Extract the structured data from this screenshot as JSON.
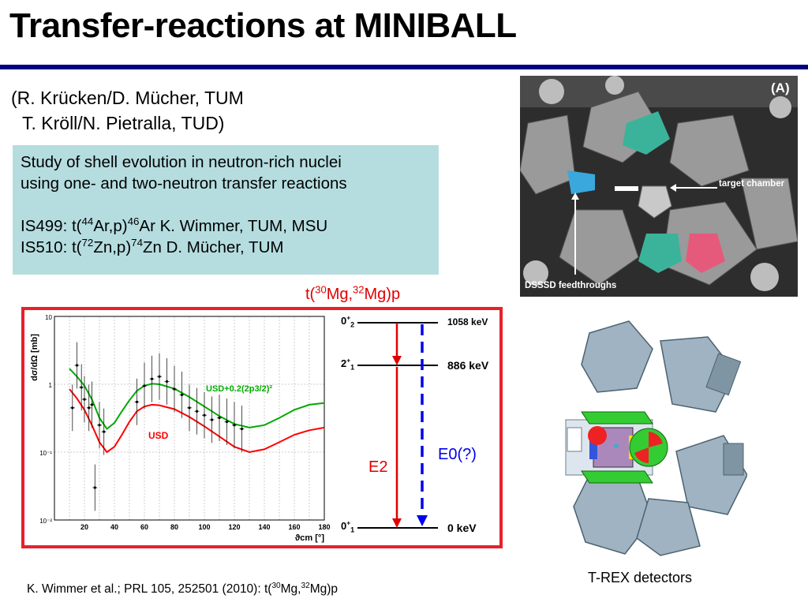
{
  "slide": {
    "title": "Transfer-reactions at MINIBALL",
    "authors_line1": "(R. Krücken/D. Mücher, TUM",
    "authors_line2": "T. Kröll/N. Pietralla, TUD)",
    "study": {
      "line1": "Study of shell evolution in neutron-rich nuclei",
      "line2": "using one- and two-neutron transfer reactions",
      "is499": {
        "pre": "IS499:  t(",
        "m1": "44",
        "mid": "Ar,p)",
        "m2": "46",
        "post": "Ar   K. Wimmer, TUM, MSU"
      },
      "is510": {
        "pre": "IS510:  t(",
        "m1": "72",
        "mid": "Zn,p)",
        "m2": "74",
        "post": "Zn  D. Mücher, TUM"
      }
    },
    "photo": {
      "label_a": "(A)",
      "label_target": "target chamber",
      "label_dsssd": "DSSSD feedthroughs"
    },
    "reaction_caption": {
      "pre": "t(",
      "m1": "30",
      "mid": "Mg,",
      "m2": "32",
      "post": "Mg)p"
    },
    "trex_label": "T-REX detectors",
    "reference": {
      "pre": "K. Wimmer et al.; PRL 105, 252501 (2010): t(",
      "m1": "30",
      "mid": "Mg,",
      "m2": "32",
      "post": "Mg)p"
    },
    "levels": {
      "top": {
        "energy": "1058 keV",
        "j": "0",
        "sup": "+",
        "sub": "2"
      },
      "mid": {
        "energy": "886 keV",
        "j": "2",
        "sup": "+",
        "sub": "1"
      },
      "gs": {
        "energy": "0 keV",
        "j": "0",
        "sup": "+",
        "sub": "1"
      },
      "e2": "E2",
      "e0": "E0(?)"
    }
  },
  "colors": {
    "title_rule": "#000080",
    "study_bg": "#b5dde0",
    "frame": "#e8202a",
    "usd": "#ff0000",
    "usd_mod": "#00aa00",
    "e0": "#0000ee"
  },
  "chart_data": {
    "type": "line",
    "xlabel": "ϑcm [°]",
    "ylabel": "dσ/dΩ [mb]",
    "xlim": [
      0,
      180
    ],
    "ylim": [
      0.01,
      10
    ],
    "yscale": "log",
    "xticks": [
      "0",
      "10",
      "20",
      "30",
      "40",
      "50",
      "60",
      "70",
      "80",
      "90",
      "100",
      "110",
      "120",
      "130",
      "140",
      "150",
      "160",
      "170",
      "180"
    ],
    "yticks": [
      "10⁻²",
      "10⁻¹",
      "1",
      "10"
    ],
    "series": [
      {
        "name": "USD",
        "color": "#ff0000",
        "x": [
          10,
          15,
          20,
          25,
          30,
          35,
          40,
          45,
          50,
          55,
          60,
          65,
          70,
          80,
          90,
          100,
          110,
          120,
          130,
          140,
          150,
          160,
          170,
          180
        ],
        "y": [
          0.85,
          0.62,
          0.42,
          0.25,
          0.14,
          0.1,
          0.12,
          0.18,
          0.28,
          0.4,
          0.47,
          0.5,
          0.49,
          0.43,
          0.33,
          0.24,
          0.17,
          0.12,
          0.1,
          0.11,
          0.14,
          0.18,
          0.21,
          0.23
        ]
      },
      {
        "name": "USD+0.2(2p3/2)²",
        "color": "#00aa00",
        "x": [
          10,
          15,
          20,
          25,
          30,
          35,
          40,
          45,
          50,
          55,
          60,
          65,
          70,
          80,
          90,
          100,
          110,
          120,
          130,
          140,
          150,
          160,
          170,
          180
        ],
        "y": [
          1.7,
          1.3,
          0.95,
          0.6,
          0.32,
          0.22,
          0.27,
          0.4,
          0.58,
          0.8,
          0.95,
          1.02,
          1.0,
          0.86,
          0.65,
          0.47,
          0.34,
          0.26,
          0.23,
          0.25,
          0.32,
          0.42,
          0.5,
          0.53
        ]
      }
    ],
    "points": [
      {
        "x": 12,
        "y": 0.45
      },
      {
        "x": 15,
        "y": 1.9
      },
      {
        "x": 18,
        "y": 0.9
      },
      {
        "x": 20,
        "y": 0.6
      },
      {
        "x": 23,
        "y": 0.45
      },
      {
        "x": 25,
        "y": 0.5
      },
      {
        "x": 27,
        "y": 0.03
      },
      {
        "x": 30,
        "y": 0.25
      },
      {
        "x": 33,
        "y": 0.2
      },
      {
        "x": 55,
        "y": 0.55
      },
      {
        "x": 60,
        "y": 0.95
      },
      {
        "x": 65,
        "y": 1.2
      },
      {
        "x": 70,
        "y": 1.3
      },
      {
        "x": 75,
        "y": 1.1
      },
      {
        "x": 80,
        "y": 0.85
      },
      {
        "x": 85,
        "y": 0.7
      },
      {
        "x": 90,
        "y": 0.45
      },
      {
        "x": 95,
        "y": 0.4
      },
      {
        "x": 100,
        "y": 0.35
      },
      {
        "x": 105,
        "y": 0.3
      },
      {
        "x": 110,
        "y": 0.32
      },
      {
        "x": 115,
        "y": 0.28
      },
      {
        "x": 120,
        "y": 0.25
      },
      {
        "x": 125,
        "y": 0.22
      }
    ]
  }
}
